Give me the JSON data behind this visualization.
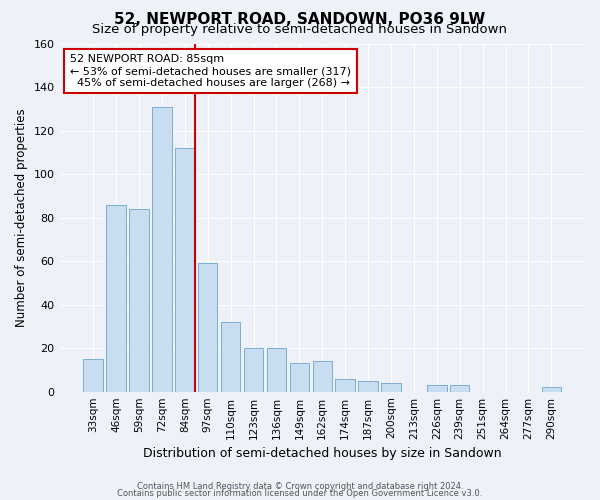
{
  "title": "52, NEWPORT ROAD, SANDOWN, PO36 9LW",
  "subtitle": "Size of property relative to semi-detached houses in Sandown",
  "xlabel": "Distribution of semi-detached houses by size in Sandown",
  "ylabel": "Number of semi-detached properties",
  "categories": [
    "33sqm",
    "46sqm",
    "59sqm",
    "72sqm",
    "84sqm",
    "97sqm",
    "110sqm",
    "123sqm",
    "136sqm",
    "149sqm",
    "162sqm",
    "174sqm",
    "187sqm",
    "200sqm",
    "213sqm",
    "226sqm",
    "239sqm",
    "251sqm",
    "264sqm",
    "277sqm",
    "290sqm"
  ],
  "values": [
    15,
    86,
    84,
    131,
    112,
    59,
    32,
    20,
    20,
    13,
    14,
    6,
    5,
    4,
    0,
    3,
    3,
    0,
    0,
    0,
    2
  ],
  "bar_color": "#c8ddf0",
  "bar_edge_color": "#7aaed4",
  "annotation_title": "52 NEWPORT ROAD: 85sqm",
  "annotation_line1": "← 53% of semi-detached houses are smaller (317)",
  "annotation_line2": "  45% of semi-detached houses are larger (268) →",
  "annotation_box_edge_color": "#cc0000",
  "vline_color": "#cc0000",
  "vline_x": 4.5,
  "ylim": [
    0,
    160
  ],
  "yticks": [
    0,
    20,
    40,
    60,
    80,
    100,
    120,
    140,
    160
  ],
  "footer1": "Contains HM Land Registry data © Crown copyright and database right 2024.",
  "footer2": "Contains public sector information licensed under the Open Government Licence v3.0.",
  "bg_color": "#eef2f8",
  "grid_color": "#ffffff",
  "title_fontsize": 11,
  "subtitle_fontsize": 9.5
}
